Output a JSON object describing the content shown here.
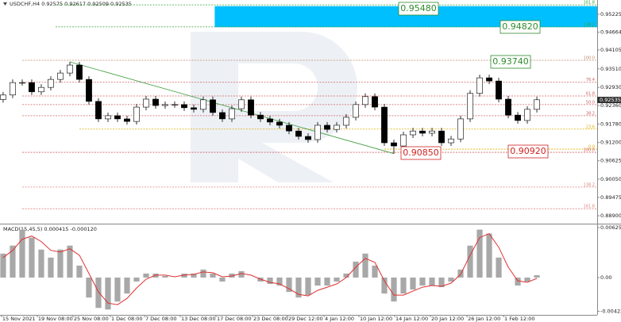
{
  "chart_data": [
    {
      "type": "candlestick",
      "title": "USDCHF,H4 0.92575 0.92617 0.92509 0.92535",
      "open": [
        0.9255,
        0.9269,
        0.9308,
        0.9308,
        0.9279,
        0.9293,
        0.9318,
        0.9338,
        0.9363,
        0.9318,
        0.9249,
        0.9194,
        0.9204,
        0.9194,
        0.9186,
        0.9231,
        0.9256,
        0.9236,
        0.9239,
        0.9239,
        0.9229,
        0.9224,
        0.9254,
        0.9214,
        0.9194,
        0.9226,
        0.9254,
        0.9206,
        0.9194,
        0.9184,
        0.9174,
        0.9156,
        0.9139,
        0.9129,
        0.9174,
        0.9161,
        0.9174,
        0.9199,
        0.9239,
        0.9264,
        0.9231,
        0.9119,
        0.9109,
        0.9144,
        0.9156,
        0.9149,
        0.9156,
        0.9119,
        0.9131,
        0.9194,
        0.9274,
        0.9323,
        0.9313,
        0.9256,
        0.9206,
        0.9189,
        0.9224
      ],
      "high": [
        0.9279,
        0.9318,
        0.9318,
        0.9318,
        0.9303,
        0.9328,
        0.9348,
        0.9373,
        0.9373,
        0.9328,
        0.9259,
        0.9214,
        0.9214,
        0.9204,
        0.9241,
        0.9266,
        0.9266,
        0.9249,
        0.9249,
        0.9249,
        0.9239,
        0.9264,
        0.9264,
        0.9224,
        0.9236,
        0.9264,
        0.9264,
        0.9216,
        0.9204,
        0.9194,
        0.9184,
        0.9166,
        0.9149,
        0.9184,
        0.9184,
        0.9184,
        0.9209,
        0.9249,
        0.9274,
        0.9274,
        0.9241,
        0.9129,
        0.9154,
        0.9166,
        0.9166,
        0.9166,
        0.9166,
        0.9141,
        0.9204,
        0.9284,
        0.9333,
        0.9333,
        0.9323,
        0.9266,
        0.9216,
        0.9234,
        0.9264
      ],
      "low": [
        0.9245,
        0.9259,
        0.9298,
        0.9269,
        0.9269,
        0.9283,
        0.9308,
        0.9328,
        0.9308,
        0.9239,
        0.9184,
        0.9184,
        0.9184,
        0.9176,
        0.9176,
        0.9221,
        0.9226,
        0.9226,
        0.9229,
        0.9219,
        0.9214,
        0.9214,
        0.9204,
        0.9184,
        0.9184,
        0.9216,
        0.9196,
        0.9184,
        0.9174,
        0.9164,
        0.9146,
        0.9129,
        0.9119,
        0.9119,
        0.9151,
        0.9151,
        0.9164,
        0.9189,
        0.9229,
        0.9221,
        0.9109,
        0.9085,
        0.9099,
        0.9134,
        0.9139,
        0.9139,
        0.9109,
        0.9109,
        0.9121,
        0.9184,
        0.9264,
        0.9303,
        0.9246,
        0.9196,
        0.9179,
        0.9179,
        0.9214
      ],
      "close": [
        0.9269,
        0.9308,
        0.9308,
        0.9279,
        0.9293,
        0.9318,
        0.9338,
        0.9363,
        0.9318,
        0.9249,
        0.9194,
        0.9204,
        0.9194,
        0.9186,
        0.9231,
        0.9256,
        0.9236,
        0.9239,
        0.9239,
        0.9229,
        0.9224,
        0.9254,
        0.9214,
        0.9194,
        0.9226,
        0.9254,
        0.9206,
        0.9194,
        0.9184,
        0.9174,
        0.9156,
        0.9139,
        0.9129,
        0.9174,
        0.9161,
        0.9174,
        0.9199,
        0.9239,
        0.9264,
        0.9231,
        0.9119,
        0.9109,
        0.9144,
        0.9156,
        0.9149,
        0.9156,
        0.9119,
        0.9131,
        0.9194,
        0.9274,
        0.9323,
        0.9313,
        0.9256,
        0.9206,
        0.9189,
        0.9224,
        0.9254
      ],
      "up_color": "#ffffff",
      "down_color": "#000000",
      "xlim": [
        -0.33,
        62.33
      ],
      "xticks": [
        {
          "value": -0.17,
          "label": "15 Nov 2021"
        },
        {
          "value": 3.58,
          "label": "19 Nov 08:00"
        },
        {
          "value": 7.33,
          "label": "25 Nov 08:00"
        },
        {
          "value": 11.25,
          "label": "1 Dec 08:00"
        },
        {
          "value": 14.83,
          "label": "7 Dec 08:00"
        },
        {
          "value": 18.58,
          "label": "13 Dec 08:00"
        },
        {
          "value": 22.33,
          "label": "17 Dec 08:00"
        },
        {
          "value": 26.17,
          "label": "23 Dec 08:00"
        },
        {
          "value": 29.83,
          "label": "29 Dec 12:00"
        },
        {
          "value": 33.67,
          "label": "4 Jan 12:00"
        },
        {
          "value": 37.33,
          "label": "10 Jan 12:00"
        },
        {
          "value": 41.08,
          "label": "14 Jan 12:00"
        },
        {
          "value": 44.83,
          "label": "20 Jan 12:00"
        },
        {
          "value": 48.67,
          "label": "26 Jan 12:00"
        },
        {
          "value": 52.5,
          "label": "1 Feb 12:00"
        }
      ],
      "ylim": [
        0.88651,
        0.95673
      ],
      "yticks": [
        0.95225,
        0.94664,
        0.94105,
        {
          "value": 0.9351,
          "label": "0.93510"
        },
        {
          "value": 0.9293,
          "label": "0.92930"
        },
        {
          "value": 0.9236,
          "label": "0.92360"
        },
        {
          "value": 0.9178,
          "label": "0.91780"
        },
        {
          "value": 0.912,
          "label": "0.91200"
        },
        0.90625,
        {
          "value": 0.9005,
          "label": "0.90050"
        },
        0.89475,
        {
          "value": 0.889,
          "label": "0.88900"
        }
      ],
      "zone": {
        "start": 22.2,
        "top": 0.9548,
        "bottom": 0.9482,
        "color": "#00bfff"
      },
      "trendline": {
        "from": [
          7,
          0.9373
        ],
        "to": [
          41,
          0.9085
        ],
        "color": "#3a9a3a"
      },
      "levels": [
        {
          "label": "161.8",
          "price": 0.9552,
          "start": 5.5,
          "color": "#3aa03a"
        },
        {
          "label": "138.2",
          "price": 0.9483,
          "start": 5.5,
          "color": "#3aa03a"
        },
        {
          "label": "100.0",
          "price": 0.9378,
          "start": 2,
          "color": "#c08868"
        },
        {
          "label": "76.4",
          "price": 0.9309,
          "start": 2,
          "color": "#d06060"
        },
        {
          "label": "61.8",
          "price": 0.9266,
          "start": 2,
          "color": "#d06060"
        },
        {
          "label": "50.0",
          "price": 0.9239,
          "start": 2,
          "color": "#d06060"
        },
        {
          "label": "38.2",
          "price": 0.9204,
          "start": 2,
          "color": "#d06060"
        },
        {
          "label": "23.6",
          "price": 0.9162,
          "start": 8,
          "color": "#e0b000"
        },
        {
          "label": "0.0",
          "price": 0.9099,
          "start": 40,
          "color": "#e0b000"
        },
        {
          "label": "100.0",
          "price": 0.9089,
          "start": 2,
          "color": "#d06060"
        },
        {
          "label": "138.2",
          "price": 0.898,
          "start": 2,
          "color": "#e08080"
        },
        {
          "label": "161.8",
          "price": 0.8912,
          "start": 2,
          "color": "#e08080"
        }
      ],
      "annotations": [
        {
          "text": "0.95480",
          "color": "#2e8b2e"
        },
        {
          "text": "0.94820",
          "color": "#2e8b2e"
        },
        {
          "text": "0.93740",
          "color": "#2e8b2e"
        },
        {
          "text": "0.90850",
          "color": "#d02020"
        },
        {
          "text": "0.90920",
          "color": "#d02020"
        }
      ],
      "last_price": 0.92535
    },
    {
      "type": "macd",
      "title": "MACD(15,45,5) 0.000415 -0.000120",
      "histogram": [
        0.003,
        0.004,
        0.006,
        0.005,
        0.0035,
        0.0025,
        0.0035,
        0.004,
        0.0015,
        -0.0025,
        -0.0038,
        -0.004,
        -0.003,
        -0.002,
        -0.0005,
        0.0005,
        0.0005,
        0.0002,
        0,
        0.0005,
        0.0005,
        0.001,
        0.0005,
        -0.0005,
        0.0005,
        0.0008,
        0,
        -0.0005,
        -0.0008,
        -0.001,
        -0.0018,
        -0.0025,
        -0.0022,
        -0.001,
        -0.001,
        -0.0005,
        0.0005,
        0.002,
        0.003,
        0.0015,
        -0.002,
        -0.003,
        -0.002,
        -0.0015,
        -0.001,
        -0.001,
        -0.0012,
        -0.0005,
        0.001,
        0.004,
        0.006,
        0.0055,
        0.0025,
        0,
        -0.001,
        -0.0005,
        0.0003
      ],
      "signal": [
        0.0025,
        0.0034,
        0.0048,
        0.0052,
        0.0045,
        0.0034,
        0.0032,
        0.0036,
        0.0028,
        0.0005,
        -0.0018,
        -0.0032,
        -0.0034,
        -0.0026,
        -0.0013,
        -0.0002,
        0.0003,
        0.0003,
        0.0001,
        0.0003,
        0.0004,
        0.0007,
        0.0006,
        0.0001,
        0.0002,
        0.0005,
        0.0003,
        -0.0002,
        -0.0006,
        -0.0008,
        -0.0014,
        -0.0021,
        -0.0023,
        -0.0016,
        -0.0012,
        -0.0008,
        0,
        0.0013,
        0.0024,
        0.0019,
        -0.0004,
        -0.0022,
        -0.0022,
        -0.0017,
        -0.0012,
        -0.001,
        -0.0011,
        -0.0007,
        0.0004,
        0.0028,
        0.005,
        0.0055,
        0.0038,
        0.0013,
        -0.0004,
        -0.0006,
        -0.0001
      ],
      "hist_color": "#a8a8a8",
      "signal_color": "#e03030",
      "ylim": [
        -0.00467,
        0.00655
      ],
      "yticks": [
        0.006255,
        {
          "value": 0,
          "label": "0.00"
        },
        -0.004225
      ]
    }
  ]
}
